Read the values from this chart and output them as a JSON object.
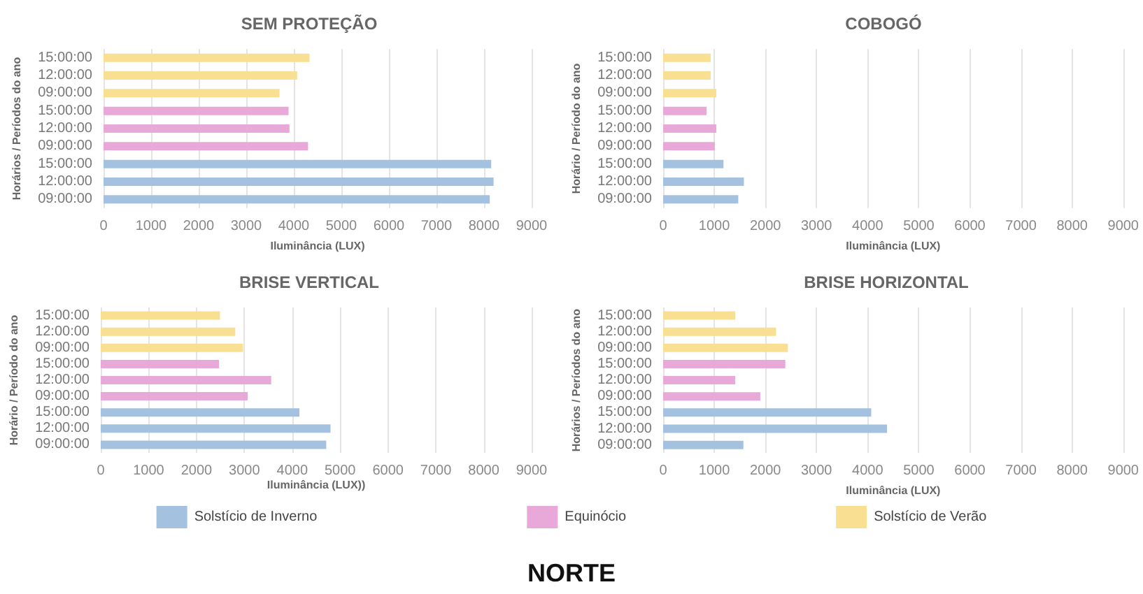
{
  "chart_data": [
    {
      "type": "bar",
      "orientation": "horizontal",
      "title": "SEM PROTEÇÃO",
      "xlabel": "Iluminância (LUX)",
      "ylabel": "Horários / Períodos do ano",
      "categories": [
        "15:00:00",
        "12:00:00",
        "09:00:00",
        "15:00:00",
        "12:00:00",
        "09:00:00",
        "15:00:00",
        "12:00:00",
        "09:00:00"
      ],
      "series": [
        {
          "color": "#f9df92",
          "values": [
            4330,
            4070,
            3700,
            null,
            null,
            null,
            null,
            null,
            null
          ]
        },
        {
          "color": "#e8a8d8",
          "values": [
            null,
            null,
            null,
            3890,
            3910,
            4300,
            null,
            null,
            null
          ]
        },
        {
          "color": "#a4c2e0",
          "values": [
            null,
            null,
            null,
            null,
            null,
            null,
            8150,
            8200,
            8120
          ]
        }
      ],
      "xlim": [
        0,
        9000
      ],
      "xticks": [
        0,
        1000,
        2000,
        3000,
        4000,
        5000,
        6000,
        7000,
        8000,
        9000
      ],
      "grid": "x",
      "legend": false
    },
    {
      "type": "bar",
      "orientation": "horizontal",
      "title": "COBOGÓ",
      "xlabel": "Iluminância (LUX)",
      "ylabel": "Horário / Período do ano",
      "categories": [
        "15:00:00",
        "12:00:00",
        "09:00:00",
        "15:00:00",
        "12:00:00",
        "09:00:00",
        "15:00:00",
        "12:00:00",
        "09:00:00"
      ],
      "series": [
        {
          "color": "#f9df92",
          "values": [
            930,
            930,
            1040,
            null,
            null,
            null,
            null,
            null,
            null
          ]
        },
        {
          "color": "#e8a8d8",
          "values": [
            null,
            null,
            null,
            850,
            1040,
            1010,
            null,
            null,
            null
          ]
        },
        {
          "color": "#a4c2e0",
          "values": [
            null,
            null,
            null,
            null,
            null,
            null,
            1180,
            1580,
            1470
          ]
        }
      ],
      "xlim": [
        0,
        9000
      ],
      "xticks": [
        0,
        1000,
        2000,
        3000,
        4000,
        5000,
        6000,
        7000,
        8000,
        9000
      ],
      "grid": "x",
      "legend": false
    },
    {
      "type": "bar",
      "orientation": "horizontal",
      "title": "BRISE VERTICAL",
      "xlabel": "Iluminância (LUX))",
      "ylabel": "Horário / Período do ano",
      "categories": [
        "15:00:00",
        "12:00:00",
        "09:00:00",
        "15:00:00",
        "12:00:00",
        "09:00:00",
        "15:00:00",
        "12:00:00",
        "09:00:00"
      ],
      "series": [
        {
          "name": "Solstício de Verão",
          "color": "#f9df92",
          "values": [
            2490,
            2810,
            2970,
            null,
            null,
            null,
            null,
            null,
            null
          ]
        },
        {
          "name": "Equinócio",
          "color": "#e8a8d8",
          "values": [
            null,
            null,
            null,
            2470,
            3560,
            3070,
            null,
            null,
            null
          ]
        },
        {
          "name": "Solstício de Inverno",
          "color": "#a4c2e0",
          "values": [
            null,
            null,
            null,
            null,
            null,
            null,
            4150,
            4800,
            4710
          ]
        }
      ],
      "xlim": [
        0,
        9000
      ],
      "xticks": [
        0,
        1000,
        2000,
        3000,
        4000,
        5000,
        6000,
        7000,
        8000,
        9000
      ],
      "grid": "x",
      "legend": "bottom",
      "annotations": [
        "NORTE"
      ]
    },
    {
      "type": "bar",
      "orientation": "horizontal",
      "title": "BRISE HORIZONTAL",
      "xlabel": "Iluminância (LUX)",
      "ylabel": "Horários / Períodos do ano",
      "categories": [
        "15:00:00",
        "12:00:00",
        "09:00:00",
        "15:00:00",
        "12:00:00",
        "09:00:00",
        "15:00:00",
        "12:00:00",
        "09:00:00"
      ],
      "series": [
        {
          "color": "#f9df92",
          "values": [
            1410,
            2210,
            2440,
            null,
            null,
            null,
            null,
            null,
            null
          ]
        },
        {
          "color": "#e8a8d8",
          "values": [
            null,
            null,
            null,
            2390,
            1410,
            1900,
            null,
            null,
            null
          ]
        },
        {
          "color": "#a4c2e0",
          "values": [
            null,
            null,
            null,
            null,
            null,
            null,
            4070,
            4380,
            1570
          ]
        }
      ],
      "xlim": [
        0,
        9000
      ],
      "xticks": [
        0,
        1000,
        2000,
        3000,
        4000,
        5000,
        6000,
        7000,
        8000,
        9000
      ],
      "grid": "x",
      "legend": false
    }
  ]
}
